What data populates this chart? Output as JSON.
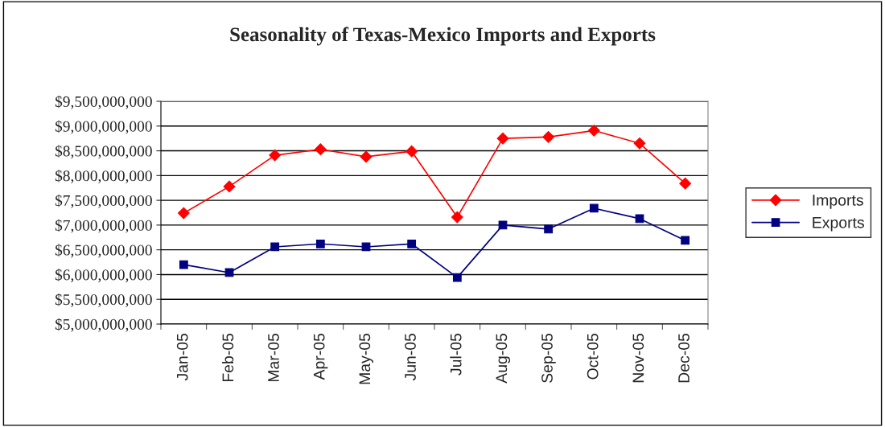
{
  "chart_data": {
    "type": "line",
    "title": "Seasonality of Texas-Mexico Imports and Exports",
    "categories": [
      "Jan-05",
      "Feb-05",
      "Mar-05",
      "Apr-05",
      "May-05",
      "Jun-05",
      "Jul-05",
      "Aug-05",
      "Sep-05",
      "Oct-05",
      "Nov-05",
      "Dec-05"
    ],
    "series": [
      {
        "name": "Imports",
        "color": "#ff0000",
        "marker": "diamond",
        "values": [
          7240000000,
          7780000000,
          8410000000,
          8530000000,
          8380000000,
          8490000000,
          7160000000,
          8750000000,
          8780000000,
          8910000000,
          8650000000,
          7840000000
        ]
      },
      {
        "name": "Exports",
        "color": "#000080",
        "marker": "square",
        "values": [
          6200000000,
          6040000000,
          6560000000,
          6620000000,
          6560000000,
          6620000000,
          5940000000,
          7000000000,
          6920000000,
          7340000000,
          7130000000,
          6690000000
        ]
      }
    ],
    "ylim": [
      5000000000,
      9500000000
    ],
    "yticks": [
      {
        "value": 5000000000,
        "label": "$5,000,000,000"
      },
      {
        "value": 5500000000,
        "label": "$5,500,000,000"
      },
      {
        "value": 6000000000,
        "label": "$6,000,000,000"
      },
      {
        "value": 6500000000,
        "label": "$6,500,000,000"
      },
      {
        "value": 7000000000,
        "label": "$7,000,000,000"
      },
      {
        "value": 7500000000,
        "label": "$7,500,000,000"
      },
      {
        "value": 8000000000,
        "label": "$8,000,000,000"
      },
      {
        "value": 8500000000,
        "label": "$8,500,000,000"
      },
      {
        "value": 9000000000,
        "label": "$9,000,000,000"
      },
      {
        "value": 9500000000,
        "label": "$9,500,000,000"
      }
    ],
    "grid": "y",
    "legend": "right",
    "line_style": "solid"
  }
}
